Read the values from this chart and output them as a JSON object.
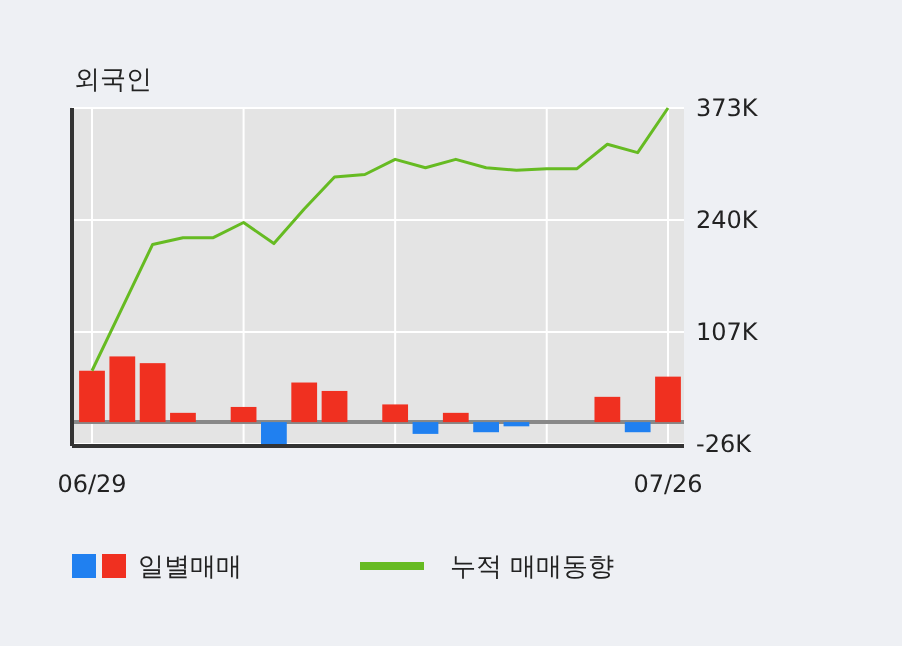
{
  "chart_data": {
    "type": "bar",
    "title": "외국인",
    "categories": [
      "06/29",
      null,
      null,
      null,
      null,
      null,
      null,
      null,
      null,
      null,
      null,
      null,
      null,
      null,
      null,
      null,
      null,
      null,
      null,
      "07/26"
    ],
    "series": [
      {
        "name": "일별매매",
        "colors": [
          "#f03020",
          "#f03020",
          "#f03020",
          "#f03020",
          "#f03020",
          "#f03020",
          "#2080f0",
          "#f03020",
          "#f03020",
          "#f03020",
          "#f03020",
          "#2080f0",
          "#f03020",
          "#2080f0",
          "#2080f0",
          "#f03020",
          "#f03020",
          "#f03020",
          "#2080f0",
          "#f03020"
        ],
        "values": [
          61,
          78,
          70,
          11,
          0,
          18,
          -26,
          47,
          37,
          0,
          21,
          -14,
          11,
          -12,
          -5,
          0,
          0,
          30,
          -12,
          54
        ]
      },
      {
        "name": "누적 매매동향",
        "type": "line",
        "color": "#66bb22",
        "values": [
          61,
          136,
          211,
          219,
          219,
          237,
          212,
          253,
          291,
          294,
          312,
          302,
          312,
          302,
          299,
          301,
          301,
          330,
          320,
          373
        ]
      }
    ],
    "ylim": [
      -26,
      373
    ],
    "yticks": [
      {
        "value": -26,
        "label": "-26K"
      },
      {
        "value": 107,
        "label": "107K"
      },
      {
        "value": 240,
        "label": "240K"
      },
      {
        "value": 373,
        "label": "373K"
      }
    ],
    "ref_lines": [
      {
        "axis": "y",
        "value": 0,
        "color": "#888888"
      }
    ],
    "grid": true,
    "legend": "bottom",
    "marker": "none",
    "line_style": "solid"
  }
}
